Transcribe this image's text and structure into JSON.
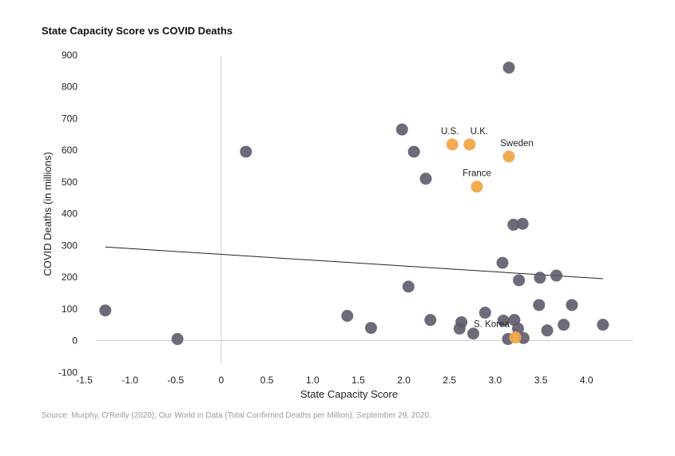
{
  "chart_data": {
    "type": "scatter",
    "title": "State Capacity Score vs COVID Deaths",
    "xlabel": "State Capacity Score",
    "ylabel": "COVID Deaths (in millions)",
    "xlim": [
      -1.5,
      4.5
    ],
    "ylim": [
      -100,
      900
    ],
    "xticks": [
      "-1.5",
      "-1.0",
      "-0.5",
      "0",
      "0.5",
      "1.0",
      "1.5",
      "2.0",
      "2.5",
      "3.0",
      "3.5",
      "4.0"
    ],
    "xtick_values": [
      -1.5,
      -1.0,
      -0.5,
      0,
      0.5,
      1.0,
      1.5,
      2.0,
      2.5,
      3.0,
      3.5,
      4.0
    ],
    "yticks": [
      "900",
      "800",
      "700",
      "600",
      "500",
      "400",
      "300",
      "200",
      "100",
      "0",
      "-100"
    ],
    "ytick_values": [
      900,
      800,
      700,
      600,
      500,
      400,
      300,
      200,
      100,
      0,
      -100
    ],
    "colors": {
      "default": "#5f5a6a",
      "highlight": "#f0a848",
      "trend": "#222222",
      "zero_line": "#cccccc"
    },
    "points": [
      {
        "x": -1.27,
        "y": 95,
        "highlight": false,
        "label": ""
      },
      {
        "x": -0.48,
        "y": 5,
        "highlight": false,
        "label": ""
      },
      {
        "x": 0.27,
        "y": 595,
        "highlight": false,
        "label": ""
      },
      {
        "x": 1.38,
        "y": 78,
        "highlight": false,
        "label": ""
      },
      {
        "x": 1.64,
        "y": 40,
        "highlight": false,
        "label": ""
      },
      {
        "x": 1.98,
        "y": 665,
        "highlight": false,
        "label": ""
      },
      {
        "x": 2.05,
        "y": 170,
        "highlight": false,
        "label": ""
      },
      {
        "x": 2.11,
        "y": 595,
        "highlight": false,
        "label": ""
      },
      {
        "x": 2.24,
        "y": 510,
        "highlight": false,
        "label": ""
      },
      {
        "x": 2.29,
        "y": 65,
        "highlight": false,
        "label": ""
      },
      {
        "x": 2.61,
        "y": 38,
        "highlight": false,
        "label": ""
      },
      {
        "x": 2.63,
        "y": 58,
        "highlight": false,
        "label": ""
      },
      {
        "x": 2.76,
        "y": 22,
        "highlight": false,
        "label": ""
      },
      {
        "x": 2.89,
        "y": 88,
        "highlight": false,
        "label": ""
      },
      {
        "x": 3.08,
        "y": 245,
        "highlight": false,
        "label": ""
      },
      {
        "x": 3.09,
        "y": 63,
        "highlight": false,
        "label": ""
      },
      {
        "x": 3.14,
        "y": 5,
        "highlight": false,
        "label": ""
      },
      {
        "x": 3.15,
        "y": 860,
        "highlight": false,
        "label": ""
      },
      {
        "x": 3.2,
        "y": 365,
        "highlight": false,
        "label": ""
      },
      {
        "x": 3.21,
        "y": 65,
        "highlight": false,
        "label": ""
      },
      {
        "x": 3.25,
        "y": 38,
        "highlight": false,
        "label": ""
      },
      {
        "x": 3.26,
        "y": 190,
        "highlight": false,
        "label": ""
      },
      {
        "x": 3.3,
        "y": 368,
        "highlight": false,
        "label": ""
      },
      {
        "x": 3.31,
        "y": 8,
        "highlight": false,
        "label": ""
      },
      {
        "x": 3.48,
        "y": 112,
        "highlight": false,
        "label": ""
      },
      {
        "x": 3.49,
        "y": 198,
        "highlight": false,
        "label": ""
      },
      {
        "x": 3.57,
        "y": 32,
        "highlight": false,
        "label": ""
      },
      {
        "x": 3.67,
        "y": 205,
        "highlight": false,
        "label": ""
      },
      {
        "x": 3.75,
        "y": 50,
        "highlight": false,
        "label": ""
      },
      {
        "x": 3.84,
        "y": 112,
        "highlight": false,
        "label": ""
      },
      {
        "x": 4.18,
        "y": 50,
        "highlight": false,
        "label": ""
      },
      {
        "x": 2.53,
        "y": 618,
        "highlight": true,
        "label": "U.S."
      },
      {
        "x": 2.72,
        "y": 618,
        "highlight": true,
        "label": "U.K."
      },
      {
        "x": 3.15,
        "y": 580,
        "highlight": true,
        "label": "Sweden"
      },
      {
        "x": 2.8,
        "y": 485,
        "highlight": true,
        "label": "France"
      },
      {
        "x": 3.22,
        "y": 10,
        "highlight": true,
        "label": "S. Korea"
      }
    ],
    "trendline": {
      "x": [
        -1.27,
        4.18
      ],
      "y": [
        295,
        195
      ]
    },
    "grid": false,
    "legend": "none"
  },
  "source_text": "Source: Murphy, O'Reilly (2020); Our World in Data (Total Confirmed Deaths per Million), September 29, 2020."
}
